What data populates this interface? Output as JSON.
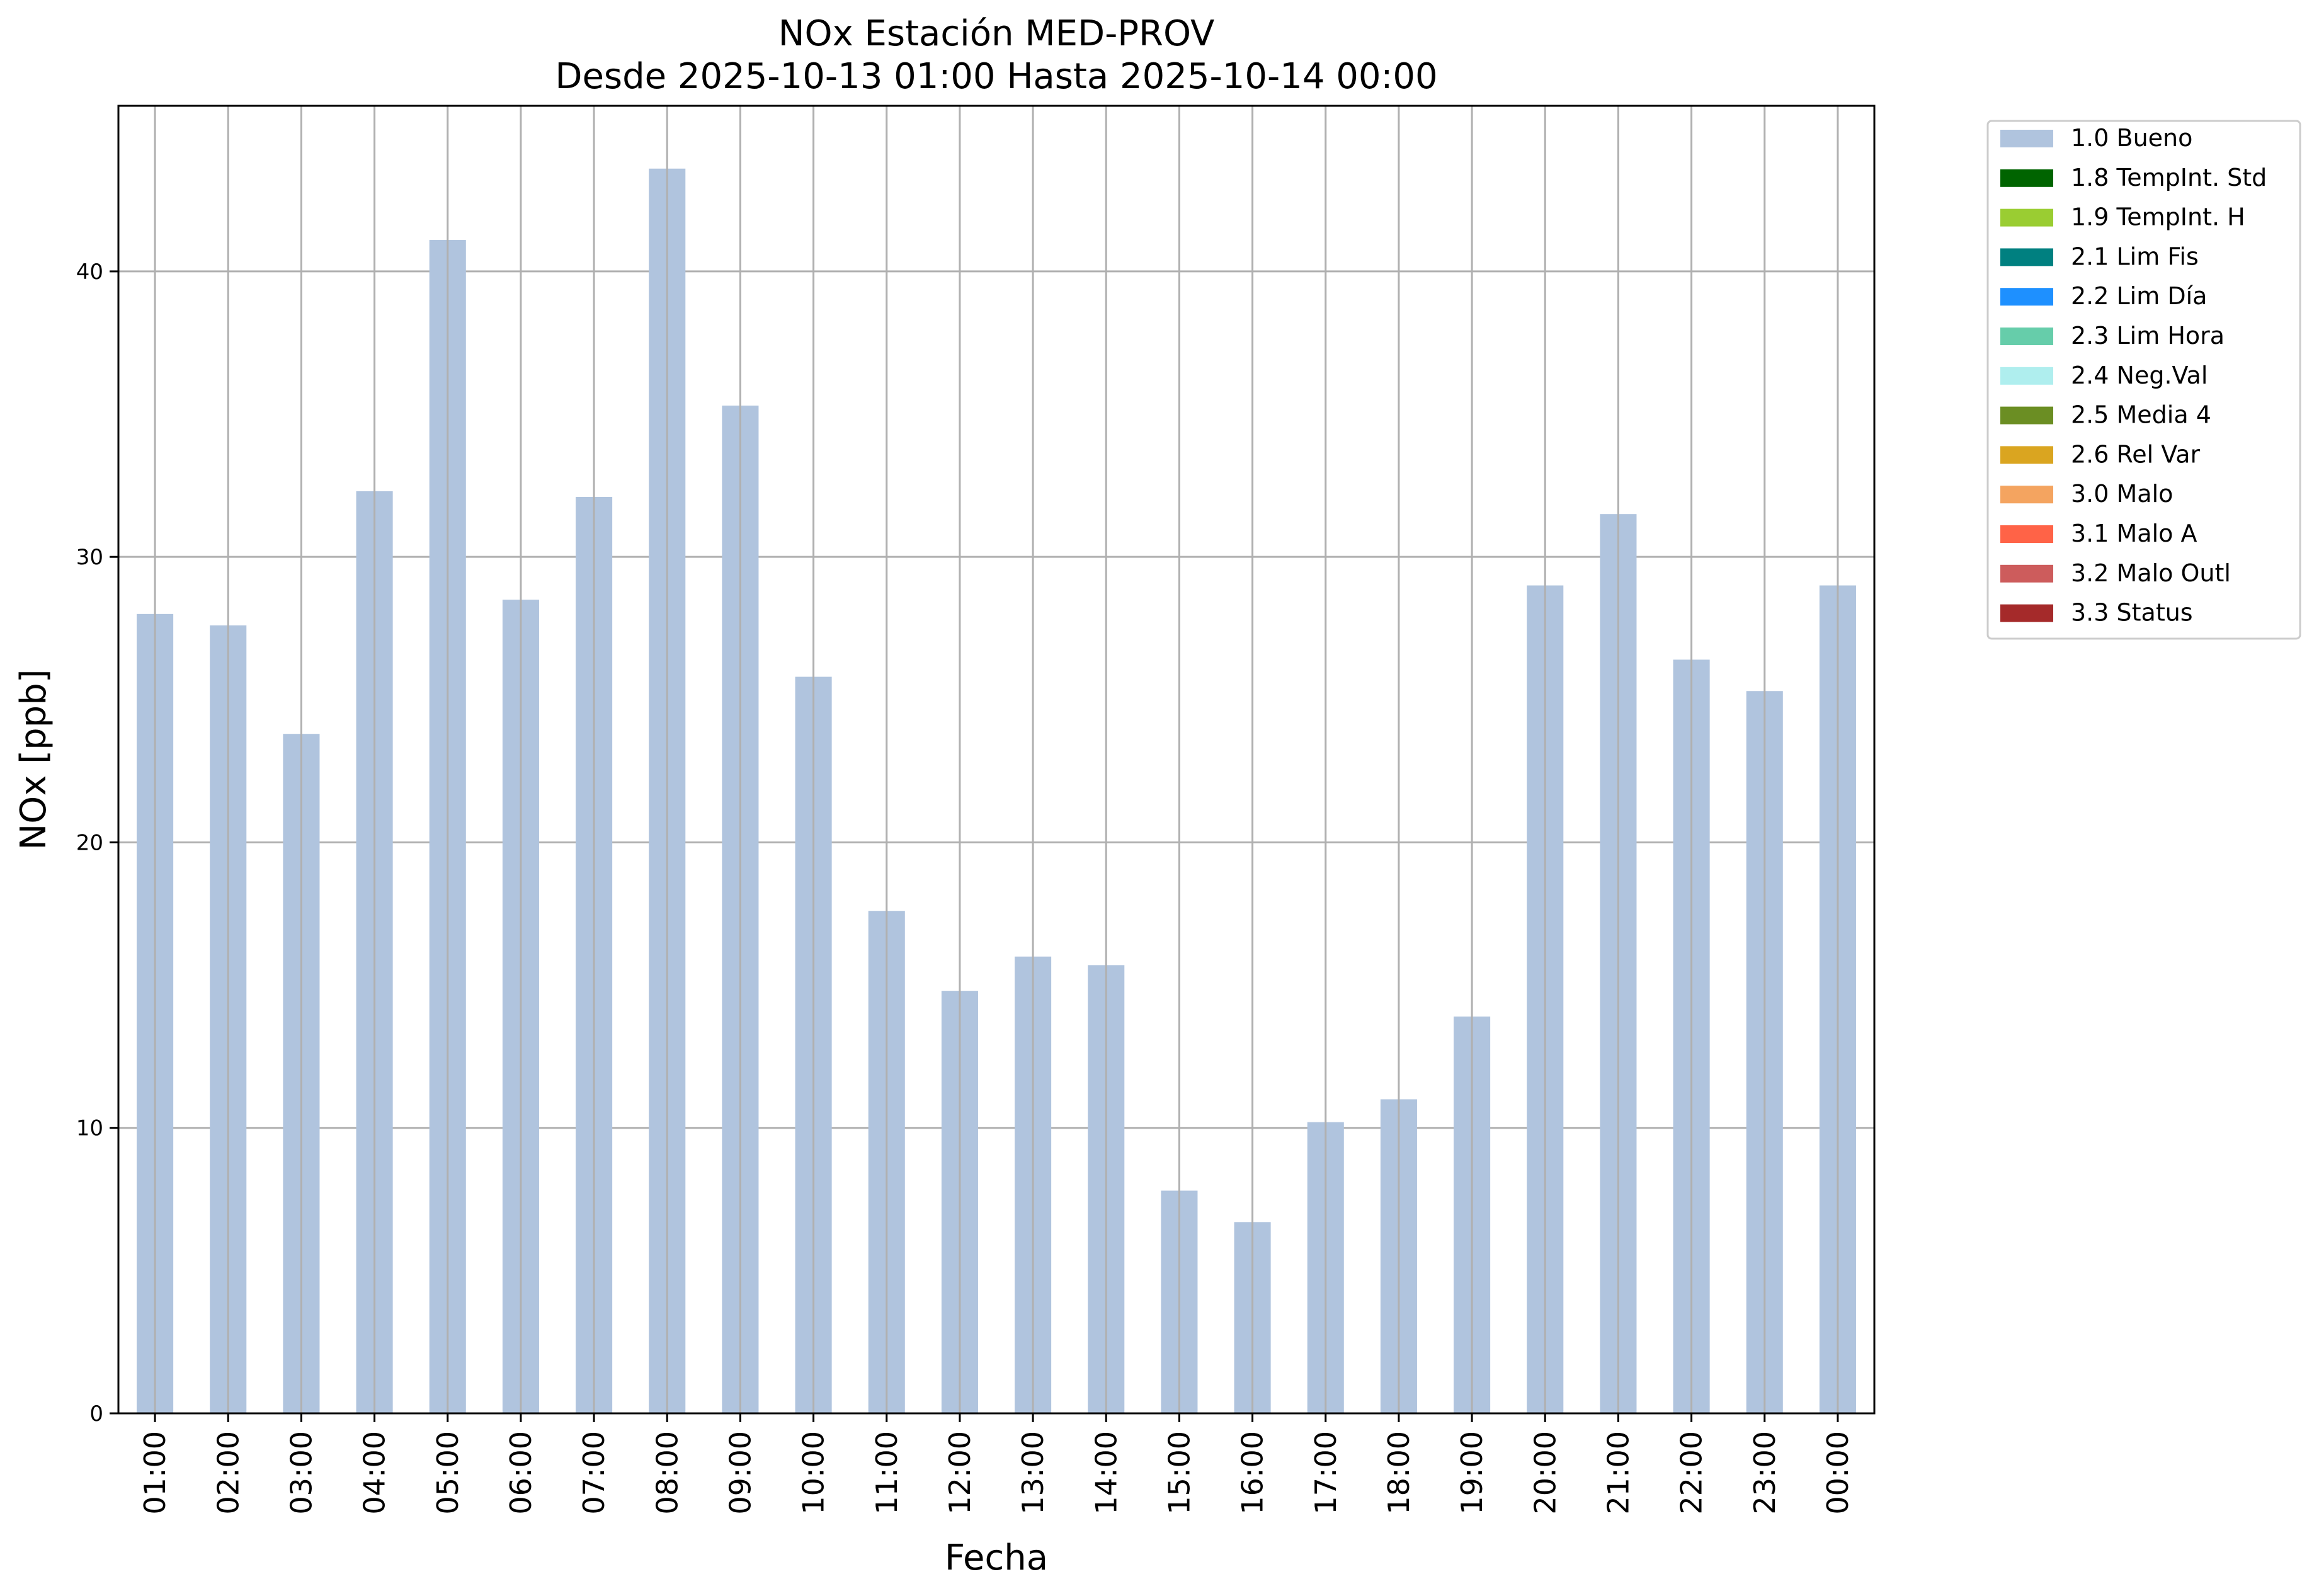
{
  "chart_data": {
    "type": "bar",
    "title": "NOx Estación MED-PROV",
    "subtitle": "Desde 2025-10-13 01:00 Hasta 2025-10-14 00:00",
    "xlabel": "Fecha",
    "ylabel": "NOx [ppb]",
    "ylim": [
      0,
      45.8
    ],
    "yticks": [
      0,
      10,
      20,
      30,
      40
    ],
    "grid": true,
    "legend_position": "outside-top-right",
    "bar_color": "#b0c4de",
    "categories": [
      "01:00",
      "02:00",
      "03:00",
      "04:00",
      "05:00",
      "06:00",
      "07:00",
      "08:00",
      "09:00",
      "10:00",
      "11:00",
      "12:00",
      "13:00",
      "14:00",
      "15:00",
      "16:00",
      "17:00",
      "18:00",
      "19:00",
      "20:00",
      "21:00",
      "22:00",
      "23:00",
      "00:00"
    ],
    "series": [
      {
        "name": "1.0 Bueno",
        "color": "#b0c4de",
        "values": [
          28.0,
          27.6,
          23.8,
          32.3,
          41.1,
          28.5,
          32.1,
          43.6,
          35.3,
          25.8,
          17.6,
          14.8,
          16.0,
          15.7,
          7.8,
          6.7,
          10.2,
          11.0,
          13.9,
          29.0,
          31.5,
          26.4,
          25.3,
          29.0
        ]
      }
    ],
    "legend": [
      {
        "label": "1.0 Bueno",
        "color": "#b0c4de"
      },
      {
        "label": "1.8 TempInt. Std",
        "color": "#006400"
      },
      {
        "label": "1.9 TempInt. H",
        "color": "#9acd32"
      },
      {
        "label": "2.1 Lim Fis",
        "color": "#008080"
      },
      {
        "label": "2.2 Lim Día",
        "color": "#1e90ff"
      },
      {
        "label": "2.3 Lim Hora",
        "color": "#66cdaa"
      },
      {
        "label": "2.4 Neg.Val",
        "color": "#afeeee"
      },
      {
        "label": "2.5 Media 4",
        "color": "#6b8e23"
      },
      {
        "label": "2.6 Rel Var",
        "color": "#daa520"
      },
      {
        "label": "3.0 Malo",
        "color": "#f4a460"
      },
      {
        "label": "3.1 Malo A",
        "color": "#ff6347"
      },
      {
        "label": "3.2 Malo Outl",
        "color": "#cd5c5c"
      },
      {
        "label": "3.3 Status",
        "color": "#a52a2a"
      }
    ]
  }
}
